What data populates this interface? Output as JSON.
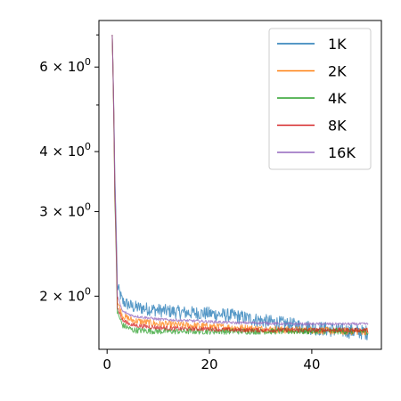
{
  "chart_data": {
    "type": "line",
    "title": "",
    "xlabel": "",
    "ylabel": "",
    "xlim": [
      -1.6,
      53.6
    ],
    "ylim": [
      1.55,
      7.5
    ],
    "yscale": "log",
    "grid": false,
    "legend_position": "top-right",
    "x_ticks": [
      {
        "value": 0,
        "label": "0"
      },
      {
        "value": 20,
        "label": "20"
      },
      {
        "value": 40,
        "label": "40"
      }
    ],
    "y_ticks": [
      {
        "value": 2,
        "base": "2",
        "mult": "×",
        "ten": "10",
        "exp": "0"
      },
      {
        "value": 3,
        "base": "3",
        "mult": "×",
        "ten": "10",
        "exp": "0"
      },
      {
        "value": 4,
        "base": "4",
        "mult": "×",
        "ten": "10",
        "exp": "0"
      },
      {
        "value": 6,
        "base": "6",
        "mult": "×",
        "ten": "10",
        "exp": "0"
      }
    ],
    "y_minor_ticks": [
      5,
      7
    ],
    "series": [
      {
        "name": "1K",
        "color": "#1f77b4",
        "x": [
          1,
          1.5,
          2,
          3,
          5,
          10,
          15,
          20,
          25,
          30,
          35,
          40,
          45,
          51
        ],
        "y": [
          7.0,
          3.6,
          2.1,
          1.95,
          1.9,
          1.87,
          1.85,
          1.84,
          1.82,
          1.78,
          1.75,
          1.72,
          1.7,
          1.68
        ],
        "noise": 0.06
      },
      {
        "name": "2K",
        "color": "#ff7f0e",
        "x": [
          1,
          1.5,
          2,
          3,
          5,
          10,
          15,
          20,
          25,
          30,
          35,
          40,
          45,
          51
        ],
        "y": [
          7.0,
          3.4,
          1.95,
          1.82,
          1.78,
          1.75,
          1.74,
          1.73,
          1.72,
          1.71,
          1.7,
          1.7,
          1.69,
          1.69
        ],
        "noise": 0.03
      },
      {
        "name": "4K",
        "color": "#2ca02c",
        "x": [
          1,
          1.5,
          2,
          3,
          5,
          10,
          15,
          20,
          25,
          30,
          35,
          40,
          45,
          51
        ],
        "y": [
          7.0,
          3.2,
          1.85,
          1.74,
          1.7,
          1.69,
          1.69,
          1.69,
          1.69,
          1.69,
          1.69,
          1.69,
          1.69,
          1.69
        ],
        "noise": 0.025
      },
      {
        "name": "8K",
        "color": "#d62728",
        "x": [
          1,
          1.5,
          2,
          3,
          5,
          10,
          15,
          20,
          25,
          30,
          35,
          40,
          45,
          51
        ],
        "y": [
          7.0,
          3.3,
          1.9,
          1.78,
          1.74,
          1.72,
          1.71,
          1.71,
          1.7,
          1.7,
          1.7,
          1.7,
          1.7,
          1.7
        ],
        "noise": 0.018
      },
      {
        "name": "16K",
        "color": "#9467bd",
        "x": [
          1,
          1.5,
          2,
          3,
          5,
          10,
          15,
          20,
          25,
          30,
          35,
          40,
          45,
          51
        ],
        "y": [
          7.0,
          3.5,
          2.0,
          1.86,
          1.82,
          1.79,
          1.78,
          1.77,
          1.76,
          1.76,
          1.75,
          1.75,
          1.75,
          1.75
        ],
        "noise": 0.012
      }
    ]
  }
}
